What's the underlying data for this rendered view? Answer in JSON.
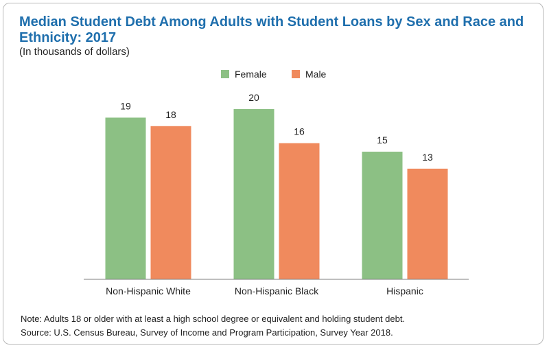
{
  "chart_data": {
    "type": "bar",
    "title": "Median Student Debt Among Adults with Student Loans by Sex and Race and Ethnicity: 2017",
    "subtitle": "(In thousands of dollars)",
    "categories": [
      "Non-Hispanic White",
      "Non-Hispanic Black",
      "Hispanic"
    ],
    "series": [
      {
        "name": "Female",
        "values": [
          19,
          20,
          15
        ],
        "color": "#8cc084"
      },
      {
        "name": "Male",
        "values": [
          18,
          16,
          13
        ],
        "color": "#f08a5d"
      }
    ],
    "ylim": [
      0,
      20
    ],
    "grid": false,
    "legend": "top-center",
    "xlabel": "",
    "ylabel": ""
  },
  "notes": {
    "note": "Note: Adults 18 or older with at least a high school degree or equivalent and holding student debt.",
    "source": "Source: U.S. Census Bureau, Survey of Income and Program Participation, Survey Year 2018."
  }
}
